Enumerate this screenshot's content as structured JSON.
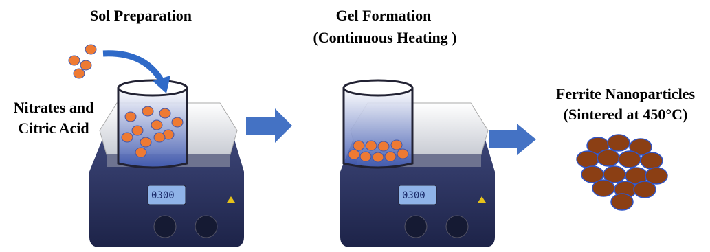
{
  "steps": [
    {
      "title": "Sol Preparation",
      "label": [
        "Nitrates and",
        "Citric Acid"
      ],
      "display": "0300"
    },
    {
      "title": "Gel Formation",
      "subtitle": "(Continuous Heating )",
      "display": "0300"
    },
    {
      "title": "Ferrite Nanoparticles",
      "subtitle": "(Sintered at 450°C)"
    }
  ]
}
